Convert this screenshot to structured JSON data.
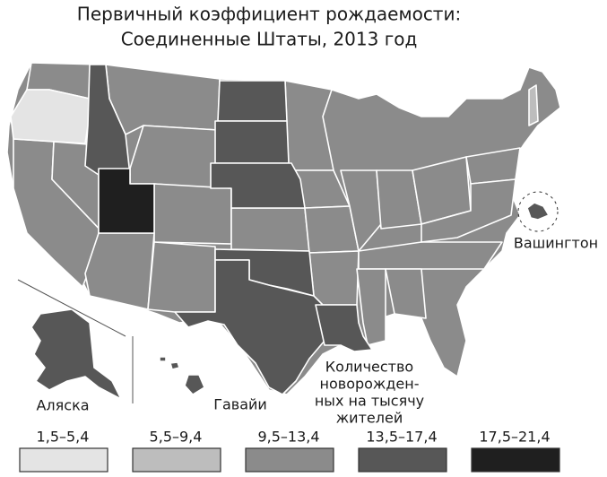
{
  "title_lines": [
    "Первичный коэффициент рождаемости:",
    "Соединенные Штаты, 2013 год"
  ],
  "labels": {
    "alaska": "Аляска",
    "hawaii": "Гавайи",
    "washington_dc": "Вашингтон"
  },
  "legend": {
    "title_lines": [
      "Количество",
      "новорожден-",
      "ных на тысячу",
      "жителей"
    ],
    "bins": [
      {
        "label": "1,5–5,4",
        "color": "#e4e4e4"
      },
      {
        "label": "5,5–9,4",
        "color": "#bdbdbd"
      },
      {
        "label": "9,5–13,4",
        "color": "#8b8b8b"
      },
      {
        "label": "13,5–17,4",
        "color": "#575757"
      },
      {
        "label": "17,5–21,4",
        "color": "#1f1f1f"
      }
    ]
  }
}
